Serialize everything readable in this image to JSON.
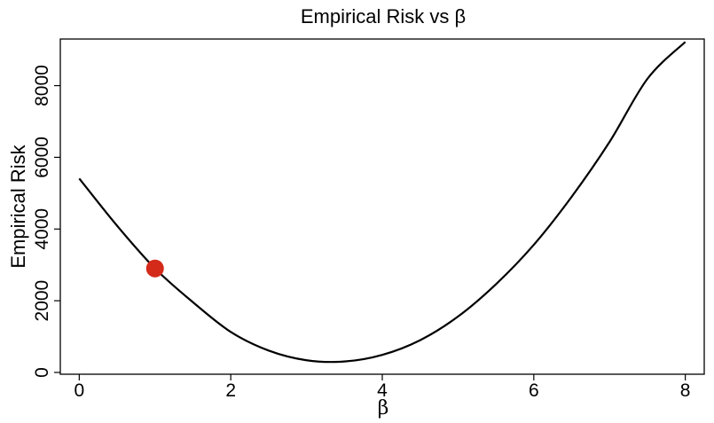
{
  "chart_data": {
    "type": "line",
    "title": "Empirical Risk vs β",
    "xlabel": "β",
    "ylabel": "Empirical Risk",
    "xlim": [
      -0.25,
      8.25
    ],
    "ylim": [
      -50,
      9300
    ],
    "x_ticks": [
      0,
      2,
      4,
      6,
      8
    ],
    "x_tick_labels": [
      "0",
      "2",
      "4",
      "6",
      "8"
    ],
    "y_ticks": [
      0,
      2000,
      4000,
      6000,
      8000
    ],
    "y_tick_labels": [
      "0",
      "2000",
      "4000",
      "6000",
      "8000"
    ],
    "grid": false,
    "legend": "none",
    "series": [
      {
        "x": [
          0,
          0.5,
          1,
          1.5,
          2,
          2.5,
          3,
          3.5,
          4,
          4.5,
          5,
          5.5,
          6,
          6.5,
          7,
          7.5,
          8
        ],
        "y": [
          5410,
          4090,
          2900,
          1960,
          1130,
          610,
          340,
          305,
          490,
          900,
          1560,
          2460,
          3560,
          4900,
          6430,
          8190,
          9220
        ],
        "color": "#000000"
      }
    ],
    "highlight_point": {
      "x": 1,
      "y": 2900,
      "color": "#d42a1a"
    }
  }
}
